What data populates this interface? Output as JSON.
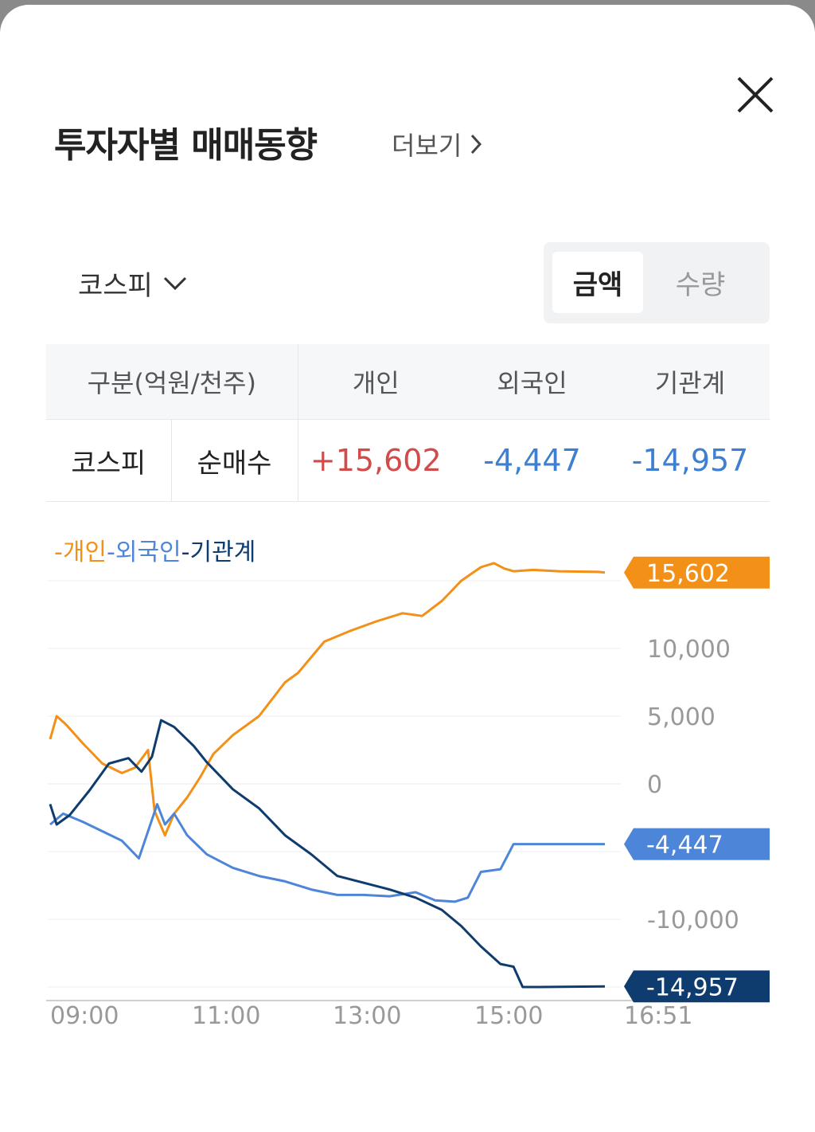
{
  "header": {
    "title": "투자자별 매매동향",
    "more_label": "더보기",
    "close_icon": "close-icon"
  },
  "controls": {
    "market_label": "코스피",
    "unit_options": [
      "금액",
      "수량"
    ],
    "selected_unit": "금액"
  },
  "table": {
    "header_label": "구분(억원/천주)",
    "columns": [
      "개인",
      "외국인",
      "기관계"
    ],
    "row": {
      "market": "코스피",
      "type": "순매수",
      "values": [
        "+15,602",
        "-4,447",
        "-14,957"
      ]
    }
  },
  "colors": {
    "individual": "#f29018",
    "foreign": "#4d86d8",
    "institution": "#0f3c6e",
    "positive": "#d24b4b",
    "negative": "#3e7fd1"
  },
  "chart_data": {
    "type": "line",
    "legend_labels": [
      "-개인",
      "-외국인",
      "-기관계"
    ],
    "x_ticks": [
      "09:00",
      "11:00",
      "13:00",
      "15:00",
      "16:51"
    ],
    "y_ticks": [
      10000,
      5000,
      0,
      -10000
    ],
    "y_tick_labels": [
      "10,000",
      "5,000",
      "0",
      "-10,000"
    ],
    "ylim": [
      -15500,
      16500
    ],
    "end_labels": [
      "15,602",
      "-4,447",
      "-14,957"
    ],
    "series": [
      {
        "name": "개인",
        "color": "#f29018",
        "points": [
          [
            "09:00",
            3300
          ],
          [
            "09:05",
            5000
          ],
          [
            "09:12",
            4400
          ],
          [
            "09:25",
            3000
          ],
          [
            "09:40",
            1500
          ],
          [
            "09:55",
            800
          ],
          [
            "10:05",
            1200
          ],
          [
            "10:15",
            2500
          ],
          [
            "10:20",
            -2000
          ],
          [
            "10:28",
            -3800
          ],
          [
            "10:35",
            -2200
          ],
          [
            "10:45",
            -1000
          ],
          [
            "10:55",
            500
          ],
          [
            "11:05",
            2200
          ],
          [
            "11:20",
            3600
          ],
          [
            "11:40",
            5000
          ],
          [
            "12:00",
            7500
          ],
          [
            "12:10",
            8200
          ],
          [
            "12:30",
            10500
          ],
          [
            "12:50",
            11300
          ],
          [
            "13:10",
            12000
          ],
          [
            "13:30",
            12600
          ],
          [
            "13:45",
            12400
          ],
          [
            "14:00",
            13500
          ],
          [
            "14:15",
            15000
          ],
          [
            "14:30",
            16000
          ],
          [
            "14:40",
            16300
          ],
          [
            "14:48",
            15900
          ],
          [
            "14:55",
            15700
          ],
          [
            "15:10",
            15800
          ],
          [
            "15:30",
            15700
          ],
          [
            "16:00",
            15650
          ],
          [
            "16:05",
            15602
          ]
        ]
      },
      {
        "name": "외국인",
        "color": "#4d86d8",
        "points": [
          [
            "09:00",
            -3000
          ],
          [
            "09:10",
            -2200
          ],
          [
            "09:25",
            -2800
          ],
          [
            "09:40",
            -3500
          ],
          [
            "09:55",
            -4200
          ],
          [
            "10:08",
            -5500
          ],
          [
            "10:15",
            -3500
          ],
          [
            "10:22",
            -1500
          ],
          [
            "10:28",
            -3000
          ],
          [
            "10:35",
            -2200
          ],
          [
            "10:45",
            -3800
          ],
          [
            "11:00",
            -5200
          ],
          [
            "11:20",
            -6200
          ],
          [
            "11:40",
            -6800
          ],
          [
            "12:00",
            -7200
          ],
          [
            "12:20",
            -7800
          ],
          [
            "12:40",
            -8200
          ],
          [
            "13:00",
            -8200
          ],
          [
            "13:20",
            -8300
          ],
          [
            "13:40",
            -8000
          ],
          [
            "13:55",
            -8600
          ],
          [
            "14:10",
            -8700
          ],
          [
            "14:20",
            -8400
          ],
          [
            "14:30",
            -6500
          ],
          [
            "14:45",
            -6300
          ],
          [
            "14:55",
            -4450
          ],
          [
            "15:30",
            -4450
          ],
          [
            "16:05",
            -4447
          ]
        ]
      },
      {
        "name": "기관계",
        "color": "#0f3c6e",
        "points": [
          [
            "09:00",
            -1500
          ],
          [
            "09:05",
            -3000
          ],
          [
            "09:15",
            -2300
          ],
          [
            "09:30",
            -500
          ],
          [
            "09:45",
            1500
          ],
          [
            "10:00",
            1900
          ],
          [
            "10:10",
            900
          ],
          [
            "10:18",
            2000
          ],
          [
            "10:25",
            4700
          ],
          [
            "10:35",
            4200
          ],
          [
            "10:50",
            2800
          ],
          [
            "11:00",
            1600
          ],
          [
            "11:20",
            -400
          ],
          [
            "11:40",
            -1800
          ],
          [
            "12:00",
            -3800
          ],
          [
            "12:20",
            -5200
          ],
          [
            "12:40",
            -6800
          ],
          [
            "13:00",
            -7300
          ],
          [
            "13:20",
            -7800
          ],
          [
            "13:40",
            -8400
          ],
          [
            "14:00",
            -9300
          ],
          [
            "14:15",
            -10500
          ],
          [
            "14:30",
            -12000
          ],
          [
            "14:45",
            -13300
          ],
          [
            "14:55",
            -13500
          ],
          [
            "15:02",
            -15000
          ],
          [
            "15:15",
            -15000
          ],
          [
            "16:05",
            -14957
          ]
        ]
      }
    ]
  }
}
